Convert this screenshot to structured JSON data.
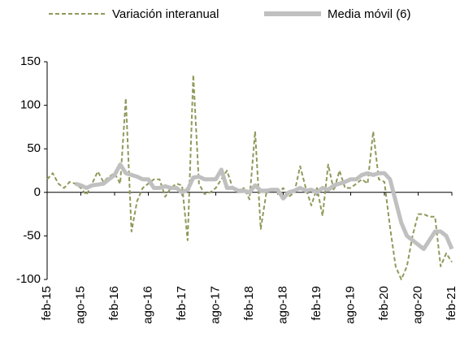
{
  "chart_data": {
    "type": "line",
    "categories": [
      "feb-15",
      null,
      null,
      null,
      null,
      null,
      "ago-15",
      null,
      null,
      null,
      null,
      null,
      "feb-16",
      null,
      null,
      null,
      null,
      null,
      "ago-16",
      null,
      null,
      null,
      null,
      null,
      "feb-17",
      null,
      null,
      null,
      null,
      null,
      "ago-17",
      null,
      null,
      null,
      null,
      null,
      "feb-18",
      null,
      null,
      null,
      null,
      null,
      "ago-18",
      null,
      null,
      null,
      null,
      null,
      "feb-19",
      null,
      null,
      null,
      null,
      null,
      "ago-19",
      null,
      null,
      null,
      null,
      null,
      "feb-20",
      null,
      null,
      null,
      null,
      null,
      "ago-20",
      null,
      null,
      null,
      null,
      null,
      "feb-21"
    ],
    "series": [
      {
        "name": "Variación interanual",
        "color": "#8f9a5a",
        "dashed": true,
        "values": [
          15,
          22,
          10,
          5,
          12,
          10,
          5,
          -3,
          10,
          24,
          12,
          18,
          22,
          10,
          108,
          -45,
          -10,
          5,
          10,
          15,
          15,
          -5,
          5,
          10,
          8,
          -55,
          135,
          10,
          -2,
          0,
          5,
          15,
          25,
          5,
          0,
          5,
          -8,
          70,
          -42,
          0,
          5,
          -2,
          5,
          -5,
          0,
          30,
          5,
          -15,
          5,
          -27,
          32,
          2,
          25,
          5,
          5,
          10,
          15,
          10,
          70,
          15,
          12,
          -40,
          -85,
          -100,
          -85,
          -50,
          -25,
          -25,
          -28,
          -28,
          -85,
          -70,
          -80
        ]
      },
      {
        "name": "Media móvil (6)",
        "color": "#c0c0c0",
        "dashed": false,
        "values": [
          null,
          null,
          null,
          null,
          null,
          10,
          8,
          5,
          8,
          9,
          10,
          15,
          20,
          32,
          22,
          20,
          18,
          15,
          15,
          5,
          5,
          7,
          5,
          5,
          0,
          3,
          17,
          18,
          15,
          15,
          15,
          26,
          5,
          5,
          2,
          2,
          0,
          8,
          2,
          2,
          3,
          3,
          -7,
          0,
          2,
          5,
          2,
          3,
          0,
          5,
          3,
          8,
          10,
          12,
          15,
          15,
          20,
          22,
          20,
          22,
          22,
          15,
          -10,
          -35,
          -50,
          -55,
          -60,
          -65,
          -55,
          -45,
          -45,
          -50,
          -65
        ]
      }
    ],
    "ylim": [
      -100,
      150
    ],
    "yticks": [
      -100,
      -50,
      0,
      50,
      100,
      150
    ],
    "grid": false,
    "legend": "top"
  }
}
